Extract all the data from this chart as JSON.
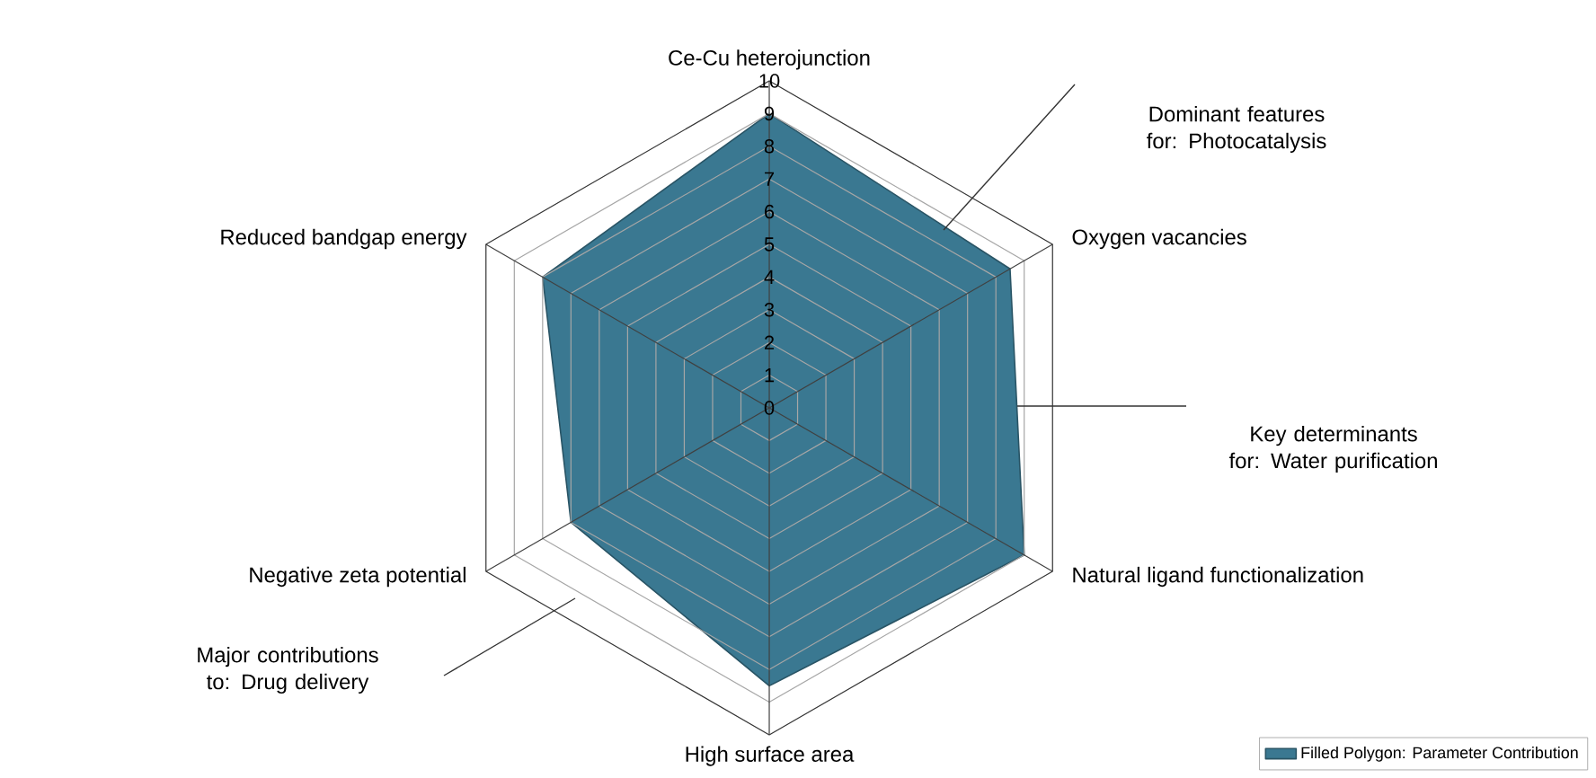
{
  "chart_data": {
    "type": "radar",
    "categories": [
      "Ce-Cu heterojunction",
      "Oxygen vacancies",
      "Natural ligand functionalization",
      "High surface area",
      "Negative zeta potential",
      "Reduced bandgap energy"
    ],
    "series": [
      {
        "name": "Filled Polygon: Parameter Contribution",
        "color": "#3a7891",
        "values": [
          9,
          8.5,
          9,
          8.5,
          7,
          8
        ]
      }
    ],
    "ylim": [
      0,
      10
    ],
    "yticks": [
      {
        "value": 0,
        "label": "0"
      },
      {
        "value": 1,
        "label": "1"
      },
      {
        "value": 2,
        "label": "2"
      },
      {
        "value": 3,
        "label": "3"
      },
      {
        "value": 4,
        "label": "4"
      },
      {
        "value": 5,
        "label": "5"
      },
      {
        "value": 6,
        "label": "6"
      },
      {
        "value": 7,
        "label": "7"
      },
      {
        "value": 8,
        "label": "8"
      },
      {
        "value": 9,
        "label": "9"
      },
      {
        "value": 10,
        "label": "10"
      }
    ],
    "grid": true,
    "legend": "bottom right",
    "annotations": [
      "Dominant features for: Photocatalysis",
      "Key determinants for: Water purification",
      "Major contributions to: Drug delivery"
    ]
  }
}
